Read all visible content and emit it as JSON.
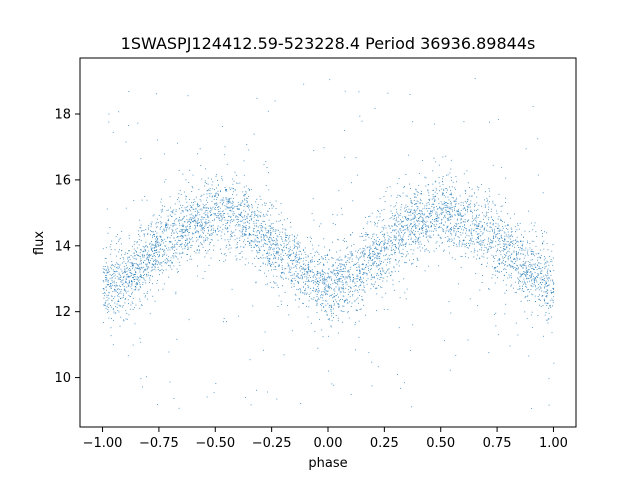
{
  "chart_data": {
    "type": "scatter",
    "title": "1SWASPJ124412.59-523228.4 Period 36936.89844s",
    "xlabel": "phase",
    "ylabel": "flux",
    "xlim": [
      -1.1,
      1.1
    ],
    "ylim": [
      8.5,
      19.7
    ],
    "grid": false,
    "legend": "none",
    "marker_color": "#1f77b4",
    "x_ticks": [
      -1.0,
      -0.75,
      -0.5,
      -0.25,
      0.0,
      0.25,
      0.5,
      0.75,
      1.0
    ],
    "x_tick_labels": [
      "−1.00",
      "−0.75",
      "−0.50",
      "−0.25",
      "0.00",
      "0.25",
      "0.50",
      "0.75",
      "1.00"
    ],
    "y_ticks": [
      10,
      12,
      14,
      16,
      18
    ],
    "y_tick_labels": [
      "10",
      "12",
      "14",
      "16",
      "18"
    ],
    "series": [
      {
        "phase_range": [
          -1.0,
          1.0
        ],
        "mean_flux_profile": {
          "x": [
            -1.0,
            -0.9,
            -0.8,
            -0.75,
            -0.7,
            -0.6,
            -0.5,
            -0.4,
            -0.3,
            -0.25,
            -0.2,
            -0.1,
            0.0,
            0.1,
            0.2,
            0.25,
            0.3,
            0.4,
            0.5,
            0.6,
            0.7,
            0.75,
            0.8,
            0.9,
            1.0
          ],
          "y": [
            12.8,
            13.0,
            13.6,
            14.0,
            14.3,
            14.7,
            15.0,
            14.8,
            14.4,
            14.1,
            13.8,
            13.2,
            12.8,
            13.0,
            13.6,
            14.0,
            14.3,
            14.7,
            15.0,
            14.8,
            14.4,
            14.1,
            13.8,
            13.3,
            12.8
          ]
        },
        "scatter_spread": 0.55,
        "outlier_range": [
          9.0,
          19.2
        ]
      }
    ]
  }
}
